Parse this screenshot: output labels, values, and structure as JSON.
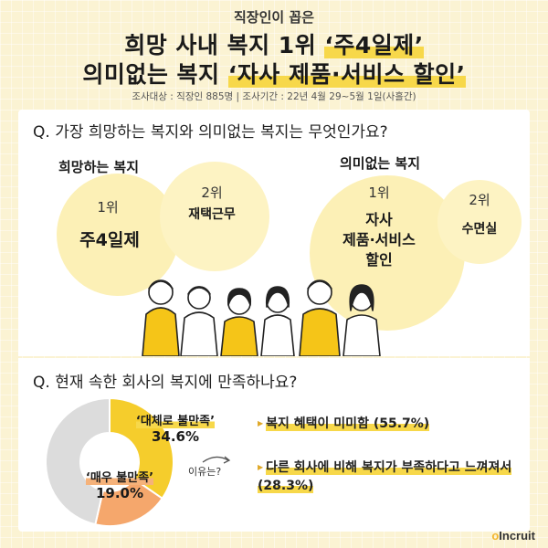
{
  "header": {
    "kicker": "직장인이 꼽은",
    "title_line1_prefix": "희망 사내 복지 1위 ",
    "title_line1_highlight": "‘주4일제’",
    "title_line2_prefix": "의미없는 복지 ",
    "title_line2_highlight": "‘자사 제품·서비스 할인’",
    "survey_info": "조사대상 : 직장인 885명  |  조사기간 : 22년 4월 29~5월 1일(사흘간)"
  },
  "section1": {
    "question": "Q. 가장 희망하는 복지와 의미없는 복지는 무엇인가요?",
    "desired_label": "희망하는 복지",
    "useless_label": "의미없는 복지",
    "desired": [
      {
        "rank": "1위",
        "item": "주4일제"
      },
      {
        "rank": "2위",
        "item": "재택근무"
      }
    ],
    "useless": [
      {
        "rank": "1위",
        "item_lines": [
          "자사",
          "제품·서비스",
          "할인"
        ]
      },
      {
        "rank": "2위",
        "item": "수면실"
      }
    ]
  },
  "section2": {
    "question": "Q. 현재 속한 회사의 복지에 만족하나요?",
    "why_label": "이유는?",
    "reasons": [
      "복지 혜택이 미미함 (55.7%)",
      "다른 회사에 비해 복지가 부족하다고 느껴져서(28.3%)"
    ]
  },
  "chart_data": {
    "type": "pie",
    "title": "",
    "slices": [
      {
        "name": "‘대체로 불만족’",
        "value_text": "34.6%",
        "value": 34.6,
        "color": "#f5cd2c"
      },
      {
        "name": "‘매우 불만족’",
        "value_text": "19.0%",
        "value": 19.0,
        "color": "#f5a76c"
      },
      {
        "name": "",
        "value": 46.4,
        "color": "#dcdcdc"
      }
    ]
  },
  "brand": {
    "logo": "Incruit",
    "logo_accent": "o"
  },
  "colors": {
    "background": "#fbf3d3",
    "accent_yellow": "#f7d84a",
    "circle_fill": "#fcf0b6",
    "orange": "#f5a76c"
  }
}
